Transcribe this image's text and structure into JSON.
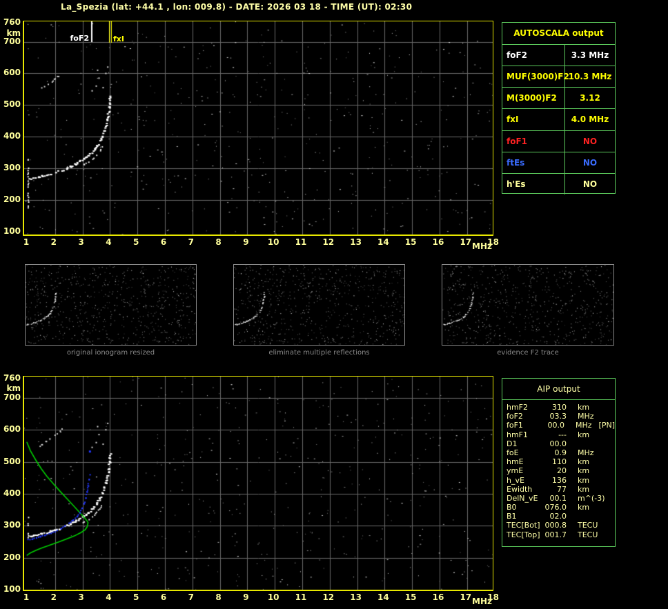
{
  "title": "La_Spezia (lat: +44.1 , lon: 009.8) - DATE: 2026 03 18 - TIME (UT): 02:30",
  "colors": {
    "background": "#000000",
    "plot_border": "#e8e800",
    "axis_text": "#ffff9c",
    "grid": "#6a6a6a",
    "table_border": "#5ccb5c",
    "table_header_yellow": "#ffff00",
    "pale_yellow": "#ffffa8",
    "white": "#ffffff",
    "red": "#ff2222",
    "blue": "#3a6cff",
    "trace_white": "#ffffff",
    "profile_green": "#00cf00",
    "restored_blue": "#2338ff",
    "caption_gray": "#8a8a8a"
  },
  "axes": {
    "x_ticks": [
      "1",
      "2",
      "3",
      "4",
      "5",
      "6",
      "7",
      "8",
      "9",
      "10",
      "11",
      "12",
      "13",
      "14",
      "15",
      "16",
      "17",
      "18"
    ],
    "x_unit": "MHz",
    "y_ticks": [
      "760",
      "700",
      "600",
      "500",
      "400",
      "300",
      "200",
      "100"
    ],
    "y_tick_values": [
      760,
      700,
      600,
      500,
      400,
      300,
      200,
      100
    ],
    "y_unit": "km"
  },
  "markers": {
    "foF2": {
      "label": "foF2",
      "freq": 3.3,
      "color": "#ffffff"
    },
    "fxI": {
      "label": "fxI",
      "freq": 4.0,
      "color": "#ffff00"
    }
  },
  "autoscala_table": {
    "header": "AUTOSCALA output",
    "rows": [
      {
        "label": "foF2",
        "value": "3.3 MHz",
        "color": "#ffffff"
      },
      {
        "label": "MUF(3000)F2",
        "value": "10.3 MHz",
        "color": "#ffff00"
      },
      {
        "label": "M(3000)F2",
        "value": "3.12",
        "color": "#ffff00"
      },
      {
        "label": "fxI",
        "value": "4.0 MHz",
        "color": "#ffff00"
      },
      {
        "label": "foF1",
        "value": "NO",
        "color": "#ff2222"
      },
      {
        "label": "ftEs",
        "value": "NO",
        "color": "#3a6cff"
      },
      {
        "label": "h'Es",
        "value": "NO",
        "color": "#ffff9c"
      }
    ]
  },
  "aip_table": {
    "header": "AIP output",
    "rows": [
      {
        "label": "hmF2",
        "value": "310",
        "unit": "km",
        "extra": ""
      },
      {
        "label": "foF2",
        "value": "03.3",
        "unit": "MHz",
        "extra": ""
      },
      {
        "label": "foF1",
        "value": "00.0",
        "unit": "MHz",
        "extra": "[PN]"
      },
      {
        "label": "hmF1",
        "value": "---",
        "unit": "km",
        "extra": ""
      },
      {
        "label": "D1",
        "value": "00.0",
        "unit": "",
        "extra": ""
      },
      {
        "label": "foE",
        "value": "0.9",
        "unit": "MHz",
        "extra": ""
      },
      {
        "label": "hmE",
        "value": "110",
        "unit": "km",
        "extra": ""
      },
      {
        "label": "ymE",
        "value": "20",
        "unit": "km",
        "extra": ""
      },
      {
        "label": "h_vE",
        "value": "136",
        "unit": "km",
        "extra": ""
      },
      {
        "label": "Ewidth",
        "value": "77",
        "unit": "km",
        "extra": ""
      },
      {
        "label": "DelN_vE",
        "value": "00.1",
        "unit": "m^(-3)",
        "extra": ""
      },
      {
        "label": "B0",
        "value": "076.0",
        "unit": "km",
        "extra": ""
      },
      {
        "label": "B1",
        "value": "02.0",
        "unit": "",
        "extra": ""
      },
      {
        "label": "TEC[Bot]",
        "value": "000.8",
        "unit": "TECU",
        "extra": ""
      },
      {
        "label": "TEC[Top]",
        "value": "001.7",
        "unit": "TECU",
        "extra": ""
      }
    ]
  },
  "panels": {
    "captions": [
      "original ionogram resized",
      "eliminate multiple reflections",
      "evidence F2 trace"
    ]
  },
  "chart_data": [
    {
      "type": "scatter",
      "title": "ionogram with autoscaled frequencies",
      "xlabel": "MHz",
      "ylabel": "km",
      "xlim": [
        1,
        18
      ],
      "ylim": [
        100,
        760
      ],
      "grid": true,
      "markers": [
        {
          "name": "foF2",
          "x": 3.3
        },
        {
          "name": "fxI",
          "x": 4.0
        }
      ],
      "series": [
        {
          "name": "F2-trace",
          "color": "#ffffff",
          "points": [
            [
              1.05,
              268
            ],
            [
              1.2,
              271
            ],
            [
              1.35,
              274
            ],
            [
              1.5,
              277
            ],
            [
              1.65,
              280
            ],
            [
              1.8,
              284
            ],
            [
              1.95,
              288
            ],
            [
              2.1,
              292
            ],
            [
              2.25,
              297
            ],
            [
              2.4,
              302
            ],
            [
              2.55,
              308
            ],
            [
              2.7,
              315
            ],
            [
              2.85,
              322
            ],
            [
              3.0,
              330
            ],
            [
              3.1,
              337
            ],
            [
              3.2,
              344
            ],
            [
              3.3,
              352
            ],
            [
              3.4,
              362
            ],
            [
              3.5,
              374
            ],
            [
              3.6,
              388
            ],
            [
              3.68,
              402
            ],
            [
              3.76,
              418
            ],
            [
              3.83,
              437
            ],
            [
              3.88,
              456
            ],
            [
              3.92,
              477
            ],
            [
              3.95,
              498
            ],
            [
              3.97,
              516
            ],
            [
              3.99,
              530
            ]
          ]
        },
        {
          "name": "x-mode-branch",
          "color": "#e6e6e6",
          "points": [
            [
              2.9,
              310
            ],
            [
              3.05,
              316
            ],
            [
              3.2,
              323
            ],
            [
              3.35,
              332
            ],
            [
              3.5,
              343
            ],
            [
              3.62,
              356
            ],
            [
              3.72,
              370
            ]
          ]
        },
        {
          "name": "second-hop",
          "color": "#cccccc",
          "points": [
            [
              1.35,
              548
            ],
            [
              1.5,
              556
            ],
            [
              1.65,
              564
            ],
            [
              1.8,
              573
            ],
            [
              1.95,
              583
            ],
            [
              2.1,
              594
            ],
            [
              2.25,
              606
            ]
          ]
        },
        {
          "name": "cusp-spread-dots",
          "color": "#d8d8d8",
          "points": [
            [
              3.35,
              545
            ],
            [
              3.5,
              560
            ],
            [
              3.55,
              610
            ],
            [
              3.6,
              585
            ],
            [
              3.75,
              555
            ],
            [
              3.85,
              600
            ],
            [
              3.92,
              620
            ]
          ]
        },
        {
          "name": "left-edge-echo",
          "color": "#ffffff",
          "points": [
            [
              1.0,
              335
            ],
            [
              1.0,
              170
            ]
          ]
        }
      ]
    },
    {
      "type": "scatter",
      "title": "ionogram with restored trace and electron density profile",
      "xlabel": "MHz",
      "ylabel": "km",
      "xlim": [
        1,
        18
      ],
      "ylim": [
        100,
        760
      ],
      "grid": true,
      "series": [
        {
          "name": "F2-trace",
          "color": "#ffffff",
          "points": [
            [
              1.05,
              268
            ],
            [
              1.2,
              271
            ],
            [
              1.35,
              274
            ],
            [
              1.5,
              277
            ],
            [
              1.65,
              280
            ],
            [
              1.8,
              284
            ],
            [
              1.95,
              288
            ],
            [
              2.1,
              292
            ],
            [
              2.25,
              297
            ],
            [
              2.4,
              302
            ],
            [
              2.55,
              308
            ],
            [
              2.7,
              315
            ],
            [
              2.85,
              322
            ],
            [
              3.0,
              330
            ],
            [
              3.1,
              337
            ],
            [
              3.2,
              344
            ],
            [
              3.3,
              352
            ],
            [
              3.4,
              362
            ],
            [
              3.5,
              374
            ],
            [
              3.6,
              388
            ],
            [
              3.68,
              402
            ],
            [
              3.76,
              418
            ],
            [
              3.83,
              437
            ],
            [
              3.88,
              456
            ],
            [
              3.92,
              477
            ],
            [
              3.95,
              498
            ],
            [
              3.97,
              516
            ],
            [
              3.99,
              530
            ]
          ]
        },
        {
          "name": "x-mode-branch",
          "color": "#e6e6e6",
          "points": [
            [
              2.9,
              310
            ],
            [
              3.05,
              316
            ],
            [
              3.2,
              323
            ],
            [
              3.35,
              332
            ],
            [
              3.5,
              343
            ],
            [
              3.62,
              356
            ],
            [
              3.72,
              370
            ]
          ]
        },
        {
          "name": "second-hop",
          "color": "#cccccc",
          "points": [
            [
              1.35,
              548
            ],
            [
              1.5,
              556
            ],
            [
              1.65,
              564
            ],
            [
              1.8,
              573
            ],
            [
              1.95,
              583
            ],
            [
              2.1,
              594
            ],
            [
              2.25,
              606
            ]
          ]
        },
        {
          "name": "cusp-spread-dots",
          "color": "#d8d8d8",
          "points": [
            [
              3.35,
              545
            ],
            [
              3.5,
              560
            ],
            [
              3.55,
              610
            ],
            [
              3.6,
              585
            ],
            [
              3.75,
              555
            ],
            [
              3.85,
              600
            ],
            [
              3.92,
              620
            ]
          ]
        },
        {
          "name": "left-edge-echo",
          "color": "#ffffff",
          "points": [
            [
              1.0,
              340
            ],
            [
              1.0,
              265
            ]
          ]
        },
        {
          "name": "electron-density-profile",
          "color": "#00cf00",
          "style": "line",
          "points": [
            [
              0.97,
              562
            ],
            [
              1.1,
              535
            ],
            [
              1.3,
              505
            ],
            [
              1.5,
              478
            ],
            [
              1.7,
              455
            ],
            [
              1.95,
              430
            ],
            [
              2.2,
              406
            ],
            [
              2.45,
              383
            ],
            [
              2.7,
              360
            ],
            [
              2.9,
              341
            ],
            [
              3.05,
              327
            ],
            [
              3.15,
              317
            ],
            [
              3.2,
              310
            ],
            [
              3.17,
              297
            ],
            [
              3.1,
              288
            ],
            [
              2.95,
              279
            ],
            [
              2.7,
              268
            ],
            [
              2.4,
              258
            ],
            [
              2.1,
              248
            ],
            [
              1.8,
              239
            ],
            [
              1.5,
              230
            ],
            [
              1.3,
              223
            ],
            [
              1.1,
              215
            ],
            [
              0.97,
              207
            ]
          ]
        },
        {
          "name": "restored-trace",
          "color": "#2338ff",
          "style": "dots",
          "points": [
            [
              1.0,
              258
            ],
            [
              1.15,
              261
            ],
            [
              1.3,
              264
            ],
            [
              1.45,
              268
            ],
            [
              1.6,
              272
            ],
            [
              1.75,
              276
            ],
            [
              1.9,
              281
            ],
            [
              2.05,
              287
            ],
            [
              2.2,
              293
            ],
            [
              2.35,
              301
            ],
            [
              2.5,
              310
            ],
            [
              2.65,
              320
            ],
            [
              2.78,
              331
            ],
            [
              2.88,
              343
            ],
            [
              2.96,
              356
            ],
            [
              3.03,
              371
            ],
            [
              3.09,
              388
            ],
            [
              3.14,
              407
            ],
            [
              3.18,
              427
            ],
            [
              3.21,
              446
            ],
            [
              3.24,
              462
            ]
          ]
        },
        {
          "name": "restored-isolated-dot",
          "color": "#2338ff",
          "style": "dots",
          "points": [
            [
              3.27,
              532
            ]
          ]
        }
      ]
    }
  ]
}
